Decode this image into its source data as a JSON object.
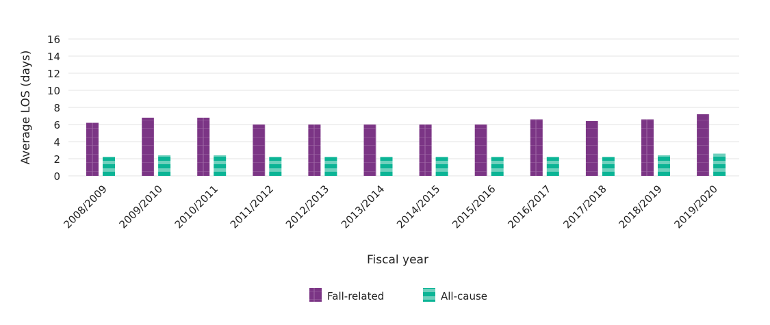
{
  "chart_data": {
    "type": "bar",
    "xlabel": "Fiscal year",
    "ylabel": "Average LOS (days)",
    "ylim": [
      0,
      16
    ],
    "yticks": [
      0,
      2,
      4,
      6,
      8,
      10,
      12,
      14,
      16
    ],
    "grid": true,
    "legend_position": "bottom",
    "categories": [
      "2008/2009",
      "2009/2010",
      "2010/2011",
      "2011/2012",
      "2012/2013",
      "2013/2014",
      "2014/2015",
      "2015/2016",
      "2016/2017",
      "2017/2018",
      "2018/2019",
      "2019/2020"
    ],
    "series": [
      {
        "name": "Fall-related",
        "color": "#7b3585",
        "values": [
          6.2,
          6.8,
          6.8,
          6.0,
          6.0,
          6.0,
          6.0,
          6.0,
          6.6,
          6.4,
          6.6,
          7.2
        ]
      },
      {
        "name": "All-cause",
        "color": "#0bb495",
        "values": [
          2.2,
          2.4,
          2.4,
          2.2,
          2.2,
          2.2,
          2.2,
          2.2,
          2.2,
          2.2,
          2.4,
          2.6
        ]
      }
    ]
  }
}
